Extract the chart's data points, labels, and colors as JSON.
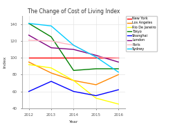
{
  "title": "The Change of Cost of Living Index",
  "xlabel": "Year",
  "ylabel": "Index",
  "years": [
    2012,
    2013,
    2014,
    2015,
    2016
  ],
  "series": [
    {
      "name": "New York",
      "color": "#ff0000",
      "values": [
        100,
        100,
        100,
        100,
        100
      ]
    },
    {
      "name": "Los Angeles",
      "color": "#ff8800",
      "values": [
        95,
        82,
        73,
        68,
        80
      ]
    },
    {
      "name": "Rio De Janeiro",
      "color": "#ffff00",
      "values": [
        92,
        88,
        73,
        52,
        45
      ]
    },
    {
      "name": "Tokyo",
      "color": "#008000",
      "values": [
        141,
        125,
        85,
        87,
        87
      ]
    },
    {
      "name": "Shanghai",
      "color": "#0000ff",
      "values": [
        60,
        72,
        60,
        55,
        62
      ]
    },
    {
      "name": "London",
      "color": "#800080",
      "values": [
        127,
        112,
        110,
        103,
        95
      ]
    },
    {
      "name": "Paris",
      "color": "#ffb6c1",
      "values": [
        121,
        120,
        115,
        101,
        100
      ]
    },
    {
      "name": "Sydney",
      "color": "#00ccff",
      "values": [
        141,
        138,
        115,
        101,
        83
      ]
    }
  ],
  "ylim": [
    40,
    150
  ],
  "yticks": [
    40,
    60,
    80,
    100,
    120,
    140
  ],
  "bg_color": "#ffffff",
  "grid_color": "#e0e0e0"
}
